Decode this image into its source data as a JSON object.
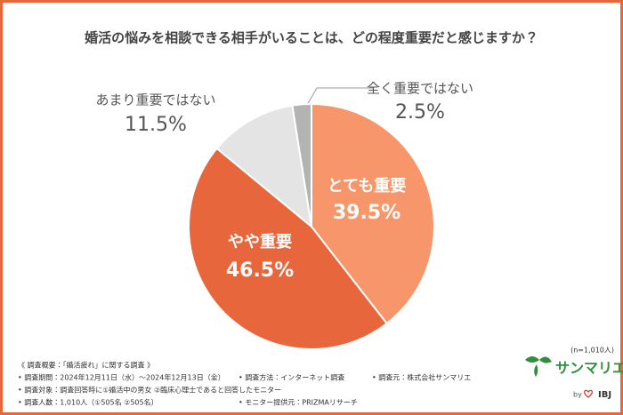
{
  "chart_data": {
    "type": "pie",
    "title": "婚活の悩みを相談できる相手がいることは、どの程度重要だと感じますか？",
    "categories": [
      "とても重要",
      "やや重要",
      "あまり重要ではない",
      "全く重要ではない"
    ],
    "values": [
      39.5,
      46.5,
      11.5,
      2.5
    ],
    "value_labels": [
      "39.5%",
      "46.5%",
      "11.5%",
      "2.5%"
    ],
    "colors": [
      "#f7966b",
      "#e8663b",
      "#e4e4e4",
      "#b3b3b3"
    ],
    "sample_note": "(n=1,010人)"
  },
  "footer": {
    "notes": [
      [
        "《 調査概要：「婚活疲れ」に関する調査 》"
      ],
      [
        "• 調査期間：2024年12月11日（水）～2024年12月13日（金）",
        "• 調査方法：インターネット調査",
        "• 調査元：株式会社サンマリエ"
      ],
      [
        "• 調査対象：調査回答時に①婚活中の男女 ②臨床心理士であると回答したモニター"
      ],
      [
        "• 調査人数：1,010人（①505名 ②505名）",
        "• モニター提供元：PRIZMAリサーチ"
      ]
    ],
    "logo": "サンマリエ",
    "by": "by",
    "brand": "IBJ"
  }
}
